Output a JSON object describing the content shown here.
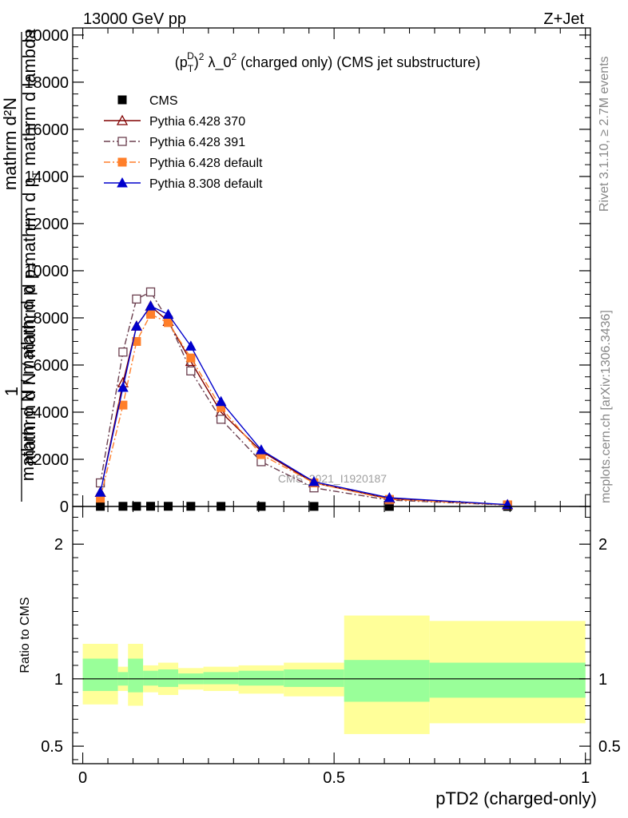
{
  "header": {
    "left": "13000 GeV pp",
    "right": "Z+Jet"
  },
  "side_labels": {
    "rivet": "Rivet 3.1.10, ≥ 2.7M events",
    "mcplots": "mcplots.cern.ch [arXiv:1306.3436]"
  },
  "watermark": "CMS_2021_I1920187",
  "chart_data": [
    {
      "type": "line",
      "title_prefix": "(p",
      "title_sub": "T",
      "title_sup": "D",
      "title_rest": ")",
      "title_sup2": "2",
      "title_mid": " λ_0",
      "title_sup3": "2",
      "title_tail": " (charged only) (CMS jet substructure)",
      "ylabel_top": "1",
      "ylabel_line1": "mathrm d²N",
      "ylabel_line2": "mathrm d p",
      "ylabel_line2_sub": "T",
      "ylabel_line2_tail": " mathrm d lambda",
      "ylabel_den1": "mathrm d N / mathrm d p",
      "ylabel_den1_sub": "T",
      "ylabel_den2": "mathrm d N / mathrm d p",
      "ylim": [
        0,
        20300
      ],
      "xlim": [
        -0.02,
        1.01
      ],
      "yticks": [
        {
          "value": 0,
          "label": "0"
        },
        {
          "value": 2000,
          "label": "2000"
        },
        {
          "value": 4000,
          "label": "4000"
        },
        {
          "value": 6000,
          "label": "6000"
        },
        {
          "value": 8000,
          "label": "8000"
        },
        {
          "value": 10000,
          "label": "10000"
        },
        {
          "value": 12000,
          "label": "12000"
        },
        {
          "value": 14000,
          "label": "14000"
        },
        {
          "value": 16000,
          "label": "16000"
        },
        {
          "value": 18000,
          "label": "18000"
        },
        {
          "value": 20000,
          "label": "20000"
        }
      ],
      "legend_position": "top-left",
      "series": [
        {
          "name": "CMS",
          "color": "#000000",
          "marker": "square-filled",
          "line": "none",
          "x": [
            0.035,
            0.08,
            0.107,
            0.135,
            0.17,
            0.215,
            0.275,
            0.355,
            0.46,
            0.61,
            0.845
          ],
          "y": [
            5,
            6,
            8,
            8,
            7,
            6,
            4,
            3,
            2,
            1,
            0.5
          ]
        },
        {
          "name": "Pythia 6.428 370",
          "color": "#800000",
          "marker": "triangle-open",
          "line": "solid",
          "x": [
            0.035,
            0.08,
            0.107,
            0.135,
            0.17,
            0.215,
            0.275,
            0.355,
            0.46,
            0.61,
            0.845
          ],
          "y": [
            600,
            5250,
            7650,
            8500,
            7850,
            6150,
            4000,
            2350,
            1000,
            330,
            70
          ]
        },
        {
          "name": "Pythia 6.428 391",
          "color": "#6b3f4f",
          "marker": "square-open",
          "line": "dashdot",
          "x": [
            0.035,
            0.08,
            0.107,
            0.135,
            0.17,
            0.215,
            0.275,
            0.355,
            0.46,
            0.61,
            0.845
          ],
          "y": [
            1000,
            6550,
            8800,
            9100,
            7900,
            5750,
            3700,
            1900,
            790,
            270,
            60
          ]
        },
        {
          "name": "Pythia 6.428 default",
          "color": "#ff7f2a",
          "marker": "square-filled",
          "line": "dashdot",
          "x": [
            0.035,
            0.08,
            0.107,
            0.135,
            0.17,
            0.215,
            0.275,
            0.355,
            0.46,
            0.61,
            0.845
          ],
          "y": [
            350,
            4300,
            7000,
            8150,
            7800,
            6300,
            4200,
            2200,
            1000,
            300,
            70
          ]
        },
        {
          "name": "Pythia 8.308 default",
          "color": "#0000cc",
          "marker": "triangle-filled",
          "line": "solid",
          "x": [
            0.035,
            0.08,
            0.107,
            0.135,
            0.17,
            0.215,
            0.275,
            0.355,
            0.46,
            0.61,
            0.845
          ],
          "y": [
            600,
            5050,
            7650,
            8500,
            8150,
            6800,
            4450,
            2400,
            1050,
            370,
            80
          ]
        }
      ]
    },
    {
      "type": "area",
      "ylabel": "Ratio to CMS",
      "xlabel": "pTD2 (charged-only)",
      "ylim": [
        0.37,
        2.28
      ],
      "xlim": [
        -0.02,
        1.01
      ],
      "reference_line": 1,
      "xticks": [
        {
          "value": 0,
          "label": "0"
        },
        {
          "value": 0.5,
          "label": "0.5"
        },
        {
          "value": 1,
          "label": "1"
        }
      ],
      "yticks": [
        {
          "value": 0.5,
          "label": "0.5"
        },
        {
          "value": 1,
          "label": "1"
        },
        {
          "value": 2,
          "label": "2"
        }
      ],
      "band_colors": {
        "outer": "#ffff99",
        "inner": "#99ff99"
      },
      "bins": [
        {
          "lo": 0.0,
          "hi": 0.07,
          "outer": [
            0.81,
            1.26
          ],
          "inner": [
            0.91,
            1.15
          ]
        },
        {
          "lo": 0.07,
          "hi": 0.09,
          "outer": [
            0.91,
            1.09
          ],
          "inner": [
            0.95,
            1.05
          ]
        },
        {
          "lo": 0.09,
          "hi": 0.12,
          "outer": [
            0.8,
            1.26
          ],
          "inner": [
            0.9,
            1.15
          ]
        },
        {
          "lo": 0.12,
          "hi": 0.15,
          "outer": [
            0.9,
            1.1
          ],
          "inner": [
            0.95,
            1.06
          ]
        },
        {
          "lo": 0.15,
          "hi": 0.19,
          "outer": [
            0.88,
            1.12
          ],
          "inner": [
            0.94,
            1.07
          ]
        },
        {
          "lo": 0.19,
          "hi": 0.24,
          "outer": [
            0.92,
            1.08
          ],
          "inner": [
            0.96,
            1.04
          ]
        },
        {
          "lo": 0.24,
          "hi": 0.31,
          "outer": [
            0.91,
            1.09
          ],
          "inner": [
            0.96,
            1.05
          ]
        },
        {
          "lo": 0.31,
          "hi": 0.4,
          "outer": [
            0.89,
            1.1
          ],
          "inner": [
            0.95,
            1.06
          ]
        },
        {
          "lo": 0.4,
          "hi": 0.52,
          "outer": [
            0.87,
            1.12
          ],
          "inner": [
            0.94,
            1.07
          ]
        },
        {
          "lo": 0.52,
          "hi": 0.69,
          "outer": [
            0.59,
            1.47
          ],
          "inner": [
            0.83,
            1.14
          ]
        },
        {
          "lo": 0.69,
          "hi": 1.0,
          "outer": [
            0.67,
            1.43
          ],
          "inner": [
            0.86,
            1.12
          ]
        }
      ]
    }
  ]
}
